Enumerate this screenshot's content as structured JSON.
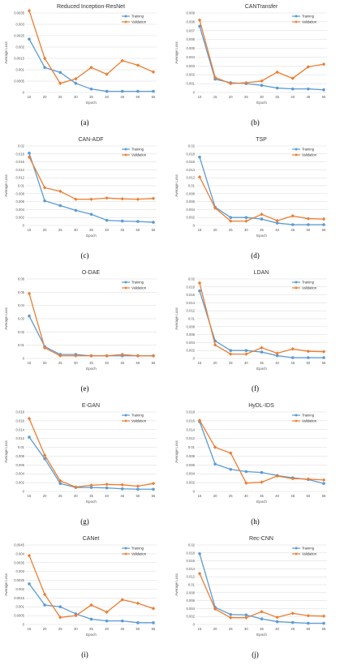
{
  "x_ticks": [
    15,
    20,
    25,
    30,
    35,
    40,
    45,
    50,
    55
  ],
  "xlabel": "Epoch",
  "ylabel": "Average Loss",
  "legend_labels": [
    "Training",
    "Validation"
  ],
  "colors": {
    "training": "#5b9bd5",
    "validation": "#ed7d31",
    "grid": "#d9d9d9"
  },
  "chart_data": [
    {
      "type": "line",
      "caption": "(a)",
      "title": "Reduced Inception-ResNet",
      "xlabel": "Epoch",
      "ylabel": "Average Loss",
      "legend": "top-right",
      "categories": [
        "15",
        "20",
        "25",
        "30",
        "35",
        "40",
        "45",
        "50",
        "55"
      ],
      "yticks": [
        "0",
        "0.0005",
        "0.001",
        "0.0015",
        "0.002",
        "0.0025",
        "0.003",
        "0.0035"
      ],
      "ylim": [
        0,
        0.0035
      ],
      "series": [
        {
          "name": "Training",
          "values": [
            0.00235,
            0.0011,
            0.00088,
            0.0004,
            0.00015,
            5e-05,
            5e-05,
            5e-05,
            5e-05
          ]
        },
        {
          "name": "Validation",
          "values": [
            0.0036,
            0.0015,
            0.0004,
            0.0006,
            0.0011,
            0.0008,
            0.0014,
            0.0012,
            0.0009
          ]
        }
      ]
    },
    {
      "type": "line",
      "caption": "(b)",
      "title": "CANTransfer",
      "xlabel": "Epoch",
      "ylabel": "Average Loss",
      "legend": "top-right",
      "categories": [
        "10",
        "15",
        "20",
        "25",
        "30",
        "35",
        "40",
        "45",
        "50"
      ],
      "yticks": [
        "0",
        "0.001",
        "0.002",
        "0.003",
        "0.004",
        "0.005",
        "0.006",
        "0.007",
        "0.008",
        "0.009"
      ],
      "ylim": [
        0,
        0.009
      ],
      "series": [
        {
          "name": "Training",
          "values": [
            0.0075,
            0.0015,
            0.0011,
            0.001,
            0.0008,
            0.0005,
            0.0004,
            0.0004,
            0.0003
          ]
        },
        {
          "name": "Validation",
          "values": [
            0.0082,
            0.0017,
            0.001,
            0.0011,
            0.0013,
            0.0023,
            0.0016,
            0.0029,
            0.0032
          ]
        }
      ]
    },
    {
      "type": "line",
      "caption": "(c)",
      "title": "CAN-ADF",
      "xlabel": "Epoch",
      "ylabel": "Average Loss",
      "legend": "top-right",
      "categories": [
        "15",
        "20",
        "25",
        "30",
        "35",
        "40",
        "45",
        "50",
        "55"
      ],
      "yticks": [
        "0",
        "0.002",
        "0.004",
        "0.006",
        "0.008",
        "0.01",
        "0.012",
        "0.014",
        "0.016",
        "0.018",
        "0.02"
      ],
      "ylim": [
        0,
        0.02
      ],
      "series": [
        {
          "name": "Training",
          "values": [
            0.0182,
            0.0062,
            0.005,
            0.0038,
            0.0028,
            0.0013,
            0.0011,
            0.001,
            0.0008
          ]
        },
        {
          "name": "Validation",
          "values": [
            0.0172,
            0.0095,
            0.0086,
            0.0066,
            0.0066,
            0.0069,
            0.0067,
            0.0066,
            0.0068
          ]
        }
      ]
    },
    {
      "type": "line",
      "caption": "(d)",
      "title": "TSP",
      "xlabel": "Epoch",
      "ylabel": "Average Loss",
      "legend": "top-right",
      "categories": [
        "15",
        "20",
        "25",
        "30",
        "35",
        "40",
        "45",
        "50",
        "55"
      ],
      "yticks": [
        "0",
        "0.002",
        "0.004",
        "0.006",
        "0.008",
        "0.01",
        "0.012",
        "0.014",
        "0.016",
        "0.018",
        "0.02"
      ],
      "ylim": [
        0,
        0.02
      ],
      "series": [
        {
          "name": "Training",
          "values": [
            0.0172,
            0.0046,
            0.002,
            0.002,
            0.0016,
            0.0006,
            0.0002,
            0.0002,
            0.0002
          ]
        },
        {
          "name": "Validation",
          "values": [
            0.0122,
            0.0044,
            0.0011,
            0.0011,
            0.0028,
            0.0012,
            0.0024,
            0.0017,
            0.0016
          ]
        }
      ]
    },
    {
      "type": "line",
      "caption": "(e)",
      "title": "O-DAE",
      "xlabel": "Epoch",
      "ylabel": "Average Loss",
      "legend": "top-right",
      "categories": [
        "15",
        "20",
        "25",
        "30",
        "35",
        "40",
        "45",
        "50",
        "55"
      ],
      "yticks": [
        "0",
        "0.01",
        "0.02",
        "0.03",
        "0.04",
        "0.05",
        "0.06"
      ],
      "ylim": [
        0,
        0.06
      ],
      "series": [
        {
          "name": "Training",
          "values": [
            0.032,
            0.009,
            0.003,
            0.003,
            0.002,
            0.002,
            0.002,
            0.002,
            0.002
          ]
        },
        {
          "name": "Validation",
          "values": [
            0.049,
            0.008,
            0.002,
            0.002,
            0.002,
            0.002,
            0.003,
            0.002,
            0.002
          ]
        }
      ]
    },
    {
      "type": "line",
      "caption": "(f)",
      "title": "LDAN",
      "xlabel": "Epoch",
      "ylabel": "Average Loss",
      "legend": "top-right",
      "categories": [
        "15",
        "20",
        "25",
        "30",
        "35",
        "40",
        "45",
        "50",
        "55"
      ],
      "yticks": [
        "0",
        "0.002",
        "0.004",
        "0.006",
        "0.008",
        "0.01",
        "0.012",
        "0.014",
        "0.016",
        "0.018",
        "0.02"
      ],
      "ylim": [
        0,
        0.02
      ],
      "series": [
        {
          "name": "Training",
          "values": [
            0.017,
            0.0044,
            0.002,
            0.002,
            0.0016,
            0.0007,
            0.0002,
            0.0002,
            0.0002
          ]
        },
        {
          "name": "Validation",
          "values": [
            0.019,
            0.0034,
            0.0011,
            0.0011,
            0.0027,
            0.0013,
            0.0024,
            0.0018,
            0.0017
          ]
        }
      ]
    },
    {
      "type": "line",
      "caption": "(g)",
      "title": "E-GAN",
      "xlabel": "Epoch",
      "ylabel": "Average Loss",
      "legend": "top-right",
      "categories": [
        "15",
        "20",
        "25",
        "30",
        "35",
        "40",
        "45",
        "50",
        "55"
      ],
      "yticks": [
        "0",
        "0.002",
        "0.004",
        "0.006",
        "0.008",
        "0.01",
        "0.012",
        "0.014",
        "0.016",
        "0.018"
      ],
      "ylim": [
        0,
        0.018
      ],
      "series": [
        {
          "name": "Training",
          "values": [
            0.0123,
            0.0074,
            0.0018,
            0.0009,
            0.0009,
            0.0008,
            0.0006,
            0.0005,
            0.0005
          ]
        },
        {
          "name": "Validation",
          "values": [
            0.0165,
            0.0082,
            0.0024,
            0.001,
            0.0014,
            0.0016,
            0.0015,
            0.0012,
            0.0018
          ]
        }
      ]
    },
    {
      "type": "line",
      "caption": "(h)",
      "title": "HyDL-IDS",
      "xlabel": "Epoch",
      "ylabel": "Average Loss",
      "legend": "top-right",
      "categories": [
        "15",
        "20",
        "25",
        "30",
        "35",
        "40",
        "45",
        "50",
        "55"
      ],
      "yticks": [
        "0",
        "0.002",
        "0.004",
        "0.006",
        "0.008",
        "0.01",
        "0.012",
        "0.014",
        "0.016",
        "0.018"
      ],
      "ylim": [
        0,
        0.018
      ],
      "series": [
        {
          "name": "Training",
          "values": [
            0.0158,
            0.0062,
            0.005,
            0.0045,
            0.0043,
            0.0036,
            0.0031,
            0.0027,
            0.0018
          ]
        },
        {
          "name": "Validation",
          "values": [
            0.0161,
            0.01,
            0.0087,
            0.0019,
            0.0021,
            0.0035,
            0.0029,
            0.0028,
            0.0026
          ]
        }
      ]
    },
    {
      "type": "line",
      "caption": "(i)",
      "title": "CANet",
      "xlabel": "Epoch",
      "ylabel": "Average Loss",
      "legend": "top-right",
      "categories": [
        "15",
        "20",
        "25",
        "30",
        "35",
        "40",
        "45",
        "50",
        "55"
      ],
      "yticks": [
        "0",
        "0.0005",
        "0.001",
        "0.0015",
        "0.002",
        "0.0025",
        "0.003",
        "0.0035",
        "0.004",
        "0.0045"
      ],
      "ylim": [
        0,
        0.0045
      ],
      "series": [
        {
          "name": "Training",
          "values": [
            0.0023,
            0.0011,
            0.001,
            0.0006,
            0.0003,
            0.0002,
            0.0002,
            0.0001,
            0.0001
          ]
        },
        {
          "name": "Validation",
          "values": [
            0.0039,
            0.0017,
            0.0004,
            0.0005,
            0.0011,
            0.0007,
            0.0014,
            0.0012,
            0.0009
          ]
        }
      ]
    },
    {
      "type": "line",
      "caption": "(j)",
      "title": "Rec-CNN",
      "xlabel": "Epoch",
      "ylabel": "Average Loss",
      "legend": "top-right",
      "categories": [
        "15",
        "20",
        "25",
        "30",
        "35",
        "40",
        "45",
        "50",
        "55"
      ],
      "yticks": [
        "0",
        "0.002",
        "0.004",
        "0.006",
        "0.008",
        "0.01",
        "0.012",
        "0.014",
        "0.016",
        "0.018",
        "0.02"
      ],
      "ylim": [
        0,
        0.02
      ],
      "series": [
        {
          "name": "Training",
          "values": [
            0.0178,
            0.0043,
            0.0025,
            0.0024,
            0.0014,
            0.0007,
            0.0005,
            0.0003,
            0.0003
          ]
        },
        {
          "name": "Validation",
          "values": [
            0.0128,
            0.0039,
            0.0017,
            0.0017,
            0.0032,
            0.0018,
            0.0028,
            0.0022,
            0.0021
          ]
        }
      ]
    }
  ]
}
